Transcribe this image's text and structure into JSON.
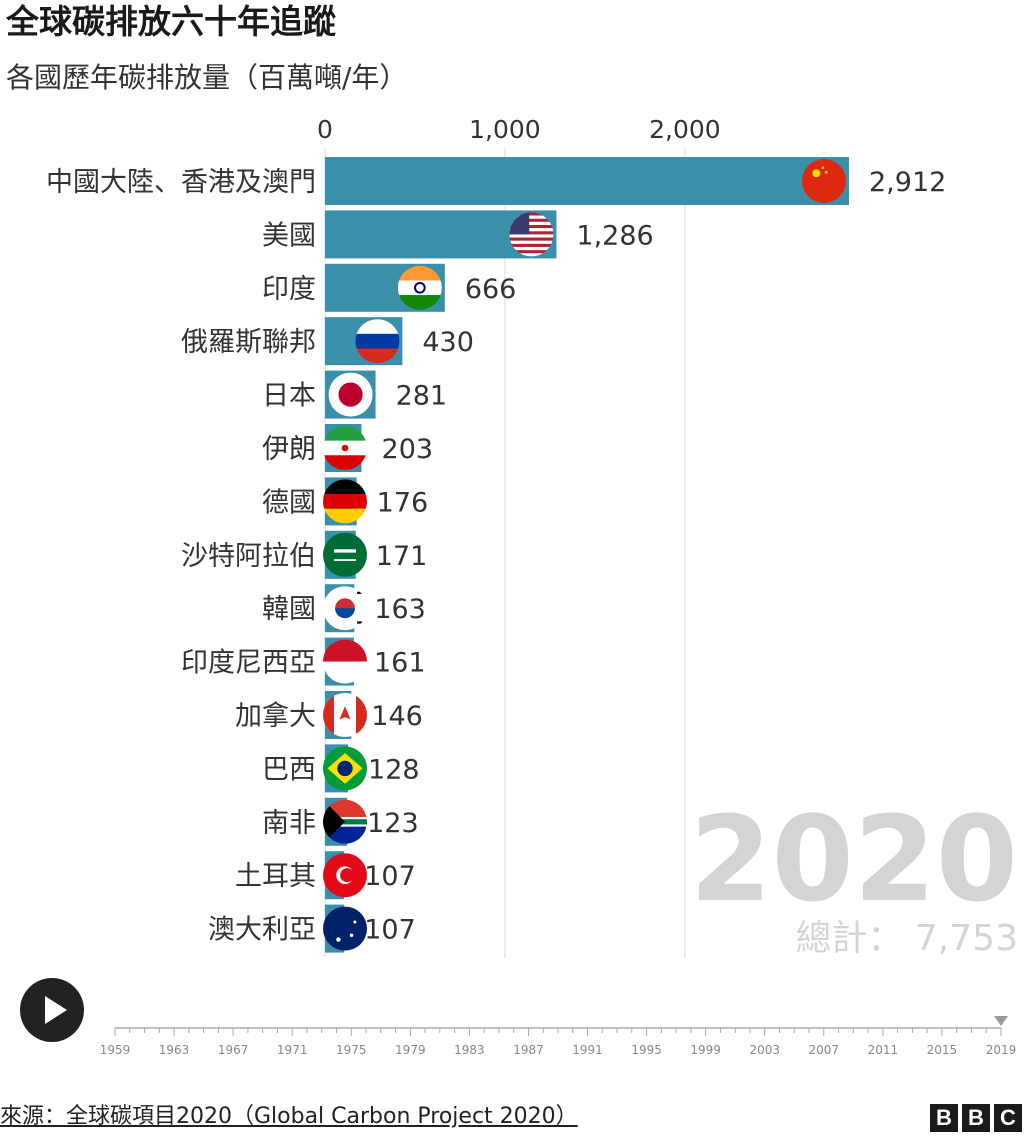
{
  "header": {
    "title": "全球碳排放六十年追蹤",
    "subtitle": "各國歷年碳排放量（百萬噸/年）"
  },
  "chart_data": {
    "type": "bar",
    "orientation": "horizontal",
    "title": "全球碳排放六十年追蹤",
    "subtitle": "各國歷年碳排放量（百萬噸/年）",
    "xlim": [
      0,
      2912
    ],
    "x_ticks": [
      0,
      1000,
      2000
    ],
    "x_tick_labels": [
      "0",
      "1,000",
      "2,000"
    ],
    "grid": true,
    "bar_color": "#3a8fab",
    "categories": [
      "中國大陸、香港及澳門",
      "美國",
      "印度",
      "俄羅斯聯邦",
      "日本",
      "伊朗",
      "德國",
      "沙特阿拉伯",
      "韓國",
      "印度尼西亞",
      "加拿大",
      "巴西",
      "南非",
      "土耳其",
      "澳大利亞"
    ],
    "values": [
      2912,
      1286,
      666,
      430,
      281,
      203,
      176,
      171,
      163,
      161,
      146,
      128,
      123,
      107,
      107
    ],
    "value_labels": [
      "2,912",
      "1,286",
      "666",
      "430",
      "281",
      "203",
      "176",
      "171",
      "163",
      "161",
      "146",
      "128",
      "123",
      "107",
      "107"
    ],
    "flags": [
      "china-flag-icon",
      "usa-flag-icon",
      "india-flag-icon",
      "russia-flag-icon",
      "japan-flag-icon",
      "iran-flag-icon",
      "germany-flag-icon",
      "saudi-arabia-flag-icon",
      "south-korea-flag-icon",
      "indonesia-flag-icon",
      "canada-flag-icon",
      "brazil-flag-icon",
      "south-africa-flag-icon",
      "turkey-flag-icon",
      "australia-flag-icon"
    ],
    "annotations": {
      "year": "2020",
      "total": "總計： 7,753"
    }
  },
  "timeline": {
    "years": [
      "1959",
      "1963",
      "1967",
      "1971",
      "1975",
      "1979",
      "1983",
      "1987",
      "1991",
      "1995",
      "1999",
      "2003",
      "2007",
      "2011",
      "2015",
      "2019"
    ],
    "position": 1.0,
    "play_icon": "play-icon"
  },
  "footer": {
    "source": "來源：全球碳項目2020（Global Carbon Project 2020）",
    "logo": [
      "B",
      "B",
      "C"
    ]
  }
}
